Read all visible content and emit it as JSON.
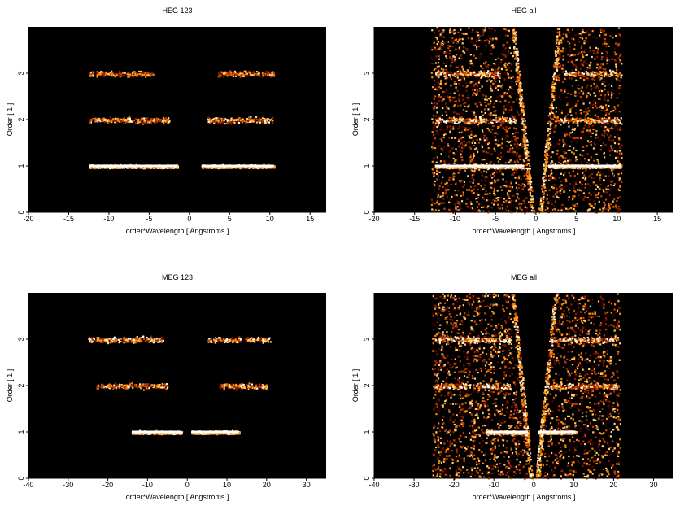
{
  "chart_data": [
    {
      "type": "heatmap",
      "title": "HEG 123",
      "xlabel": "order*Wavelength [ Angstroms ]",
      "ylabel": "Order [ 1 ]",
      "xlim": [
        -20,
        17
      ],
      "ylim": [
        0,
        4
      ],
      "xticks": [
        -20,
        -15,
        -10,
        -5,
        0,
        5,
        10,
        15
      ],
      "yticks": [
        0,
        1,
        2,
        3
      ],
      "grid": false,
      "background": "#000000",
      "bands": [
        {
          "order": 1,
          "x_ranges": [
            [
              -12.5,
              -1.5
            ],
            [
              1.5,
              10.5
            ]
          ],
          "intensity": 1.0
        },
        {
          "order": 2,
          "x_ranges": [
            [
              -12.5,
              -2.5
            ],
            [
              2.2,
              10.5
            ]
          ],
          "intensity": 0.35
        },
        {
          "order": 3,
          "x_ranges": [
            [
              -12.5,
              -4.5
            ],
            [
              3.5,
              10.5
            ]
          ],
          "intensity": 0.25
        }
      ],
      "background_noise": false
    },
    {
      "type": "heatmap",
      "title": "HEG all",
      "xlabel": "order*Wavelength [ Angstroms ]",
      "ylabel": "Order [ 1 ]",
      "xlim": [
        -20,
        17
      ],
      "ylim": [
        0,
        4
      ],
      "xticks": [
        -20,
        -15,
        -10,
        -5,
        0,
        5,
        10,
        15
      ],
      "yticks": [
        0,
        1,
        2,
        3
      ],
      "grid": false,
      "background": "#000000",
      "bands": [
        {
          "order": 1,
          "x_ranges": [
            [
              -12.5,
              -1.5
            ],
            [
              1.5,
              10.5
            ]
          ],
          "intensity": 1.0
        },
        {
          "order": 2,
          "x_ranges": [
            [
              -12.5,
              -2.5
            ],
            [
              2.2,
              10.5
            ]
          ],
          "intensity": 0.5
        },
        {
          "order": 3,
          "x_ranges": [
            [
              -12.5,
              -4.5
            ],
            [
              3.5,
              10.5
            ]
          ],
          "intensity": 0.4
        }
      ],
      "background_noise": true,
      "noise_xrange": [
        -13,
        10.5
      ]
    },
    {
      "type": "heatmap",
      "title": "MEG 123",
      "xlabel": "order*Wavelength [ Angstroms ]",
      "ylabel": "Order [ 1 ]",
      "xlim": [
        -40,
        35
      ],
      "ylim": [
        0,
        4
      ],
      "xticks": [
        -40,
        -30,
        -20,
        -10,
        0,
        10,
        20,
        30
      ],
      "yticks": [
        0,
        1,
        2,
        3
      ],
      "grid": false,
      "background": "#000000",
      "bands": [
        {
          "order": 1,
          "x_ranges": [
            [
              -14,
              -1.5
            ],
            [
              1,
              13
            ]
          ],
          "intensity": 1.0
        },
        {
          "order": 2,
          "x_ranges": [
            [
              -23,
              -5
            ],
            [
              8,
              20
            ]
          ],
          "intensity": 0.35
        },
        {
          "order": 3,
          "x_ranges": [
            [
              -25,
              -6
            ],
            [
              5,
              21
            ]
          ],
          "intensity": 0.45
        }
      ],
      "background_noise": false
    },
    {
      "type": "heatmap",
      "title": "MEG all",
      "xlabel": "order*Wavelength [ Angstroms ]",
      "ylabel": "Order [ 1 ]",
      "xlim": [
        -40,
        35
      ],
      "ylim": [
        0,
        4
      ],
      "xticks": [
        -40,
        -30,
        -20,
        -10,
        0,
        10,
        20,
        30
      ],
      "yticks": [
        0,
        1,
        2,
        3
      ],
      "grid": false,
      "background": "#000000",
      "bands": [
        {
          "order": 1,
          "x_ranges": [
            [
              -12,
              -1.5
            ],
            [
              1,
              10.5
            ]
          ],
          "intensity": 1.0
        },
        {
          "order": 2,
          "x_ranges": [
            [
              -25,
              -6
            ],
            [
              4,
              21
            ]
          ],
          "intensity": 0.5
        },
        {
          "order": 3,
          "x_ranges": [
            [
              -25,
              -6
            ],
            [
              4,
              21
            ]
          ],
          "intensity": 0.55
        }
      ],
      "background_noise": true,
      "noise_xrange": [
        -25.5,
        21.5
      ]
    }
  ],
  "colormap": [
    "#000000",
    "#4a0000",
    "#8b1a00",
    "#c84000",
    "#ff8c00",
    "#ffd27a",
    "#ffffff"
  ]
}
